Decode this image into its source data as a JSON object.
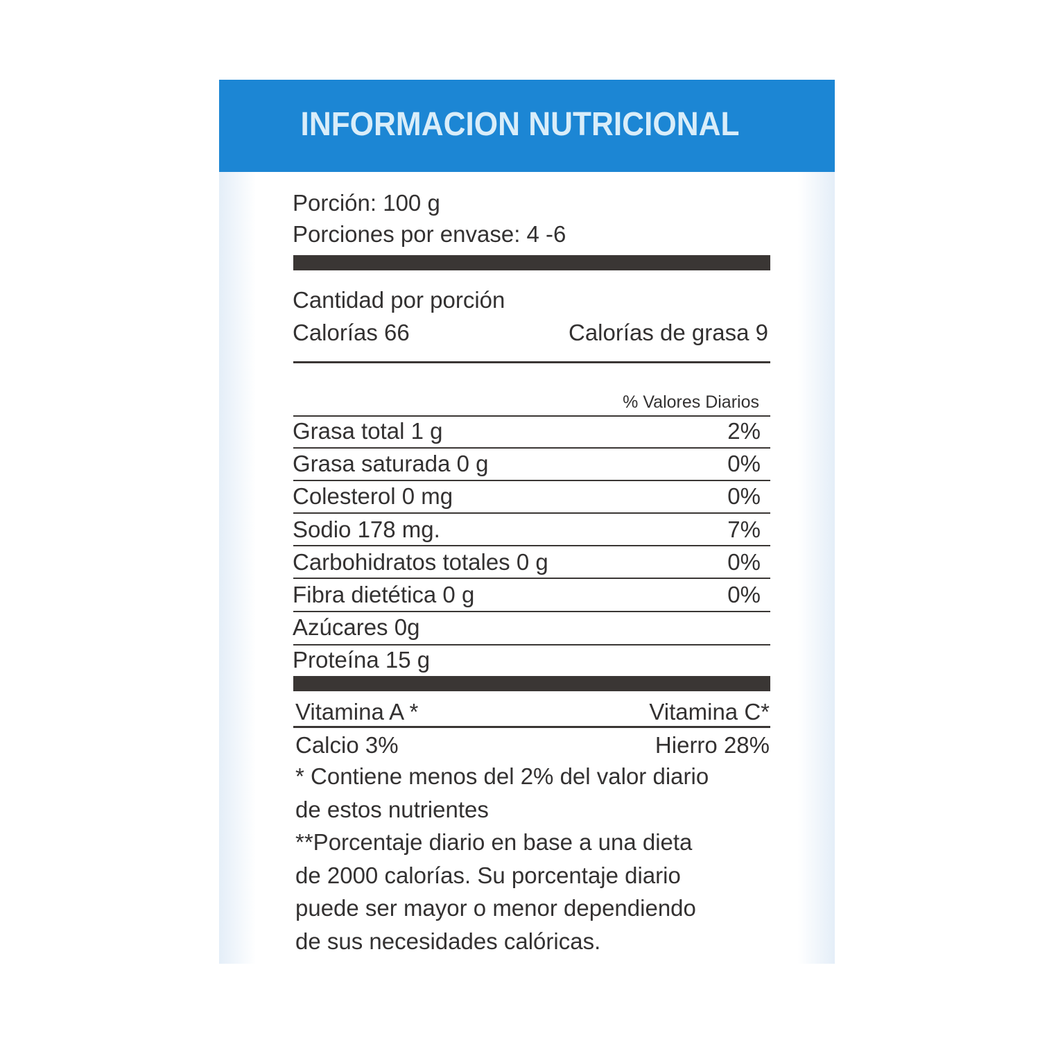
{
  "title": "INFORMACION NUTRICIONAL",
  "colors": {
    "header": "#1c86d4",
    "title_text": "#d9edf9",
    "text": "#333131"
  },
  "serving": {
    "portion": "Porción: 100 g",
    "servings_per_container": "Porciones por envase: 4 -6"
  },
  "amount_per_serving": "Cantidad por porción",
  "calories": "Calorías 66",
  "calories_from_fat": "Calorías de grasa 9",
  "daily_values_header": "% Valores Diarios",
  "nutrients": [
    {
      "label": "Grasa total 1 g",
      "dv": "2%"
    },
    {
      "label": "Grasa saturada 0 g",
      "dv": "0%"
    },
    {
      "label": "Colesterol 0 mg",
      "dv": "0%"
    },
    {
      "label": "Sodio 178 mg.",
      "dv": "7%"
    },
    {
      "label": "Carbohidratos totales 0 g",
      "dv": "0%"
    },
    {
      "label": "Fibra dietética 0 g",
      "dv": "0%"
    },
    {
      "label": "Azúcares 0g",
      "dv": ""
    },
    {
      "label": "Proteína  15 g",
      "dv": ""
    }
  ],
  "vitamins": {
    "vitamin_a": "Vitamina A *",
    "vitamin_c": "Vitamina C*",
    "calcium": "Calcio 3%",
    "iron": "Hierro 28%"
  },
  "footnotes": [
    "* Contiene menos del 2% del valor diario",
    "de estos nutrientes",
    "**Porcentaje diario en base a una dieta",
    "de 2000 calorías. Su porcentaje  diario",
    "puede ser mayor  o menor dependiendo",
    "de sus necesidades calóricas."
  ]
}
